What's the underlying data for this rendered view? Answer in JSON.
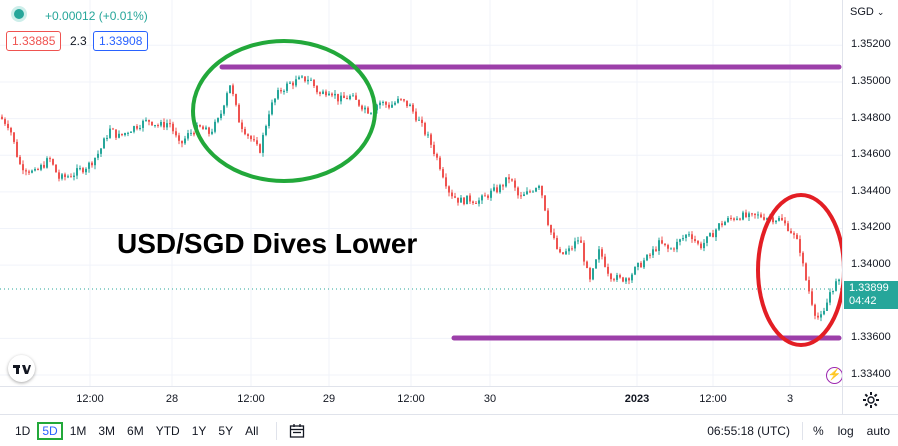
{
  "header": {
    "change_text": "+0.00012 (+0.01%)",
    "bid": "1.33885",
    "spread": "2.3",
    "ask": "1.33908"
  },
  "annotation": {
    "title": "USD/SGD Dives Lower",
    "ellipse_green_color": "#22a83a",
    "ellipse_red_color": "#e31e24",
    "line_color": "#9c3fa9"
  },
  "price_axis": {
    "currency": "SGD",
    "ticks": [
      "1.35200",
      "1.35000",
      "1.34800",
      "1.34600",
      "1.34400",
      "1.34200",
      "1.34000",
      "1.33600",
      "1.33400"
    ],
    "current_price": "1.33899",
    "countdown": "04:42"
  },
  "time_axis": {
    "ticks": [
      "12:00",
      "28",
      "12:00",
      "29",
      "12:00",
      "30",
      "2023",
      "12:00",
      "3"
    ]
  },
  "bottom_bar": {
    "intervals": [
      "1D",
      "5D",
      "1M",
      "3M",
      "6M",
      "YTD",
      "1Y",
      "5Y",
      "All"
    ],
    "active_interval": "5D",
    "clock": "06:55:18 (UTC)",
    "percent_label": "%",
    "log_label": "log",
    "auto_label": "auto"
  },
  "chart_data": {
    "type": "candlestick",
    "symbol": "USD/SGD",
    "ylim": [
      1.3334,
      1.3536
    ],
    "up_color": "#26a69a",
    "down_color": "#ef5350",
    "path_points": [
      [
        0,
        1.3481
      ],
      [
        10,
        1.3476
      ],
      [
        20,
        1.3455
      ],
      [
        35,
        1.345
      ],
      [
        50,
        1.3458
      ],
      [
        60,
        1.3447
      ],
      [
        75,
        1.345
      ],
      [
        90,
        1.3455
      ],
      [
        100,
        1.3462
      ],
      [
        110,
        1.3474
      ],
      [
        120,
        1.347
      ],
      [
        130,
        1.3474
      ],
      [
        140,
        1.3477
      ],
      [
        150,
        1.3479
      ],
      [
        160,
        1.3476
      ],
      [
        170,
        1.3478
      ],
      [
        180,
        1.3465
      ],
      [
        190,
        1.3472
      ],
      [
        200,
        1.3475
      ],
      [
        210,
        1.3472
      ],
      [
        220,
        1.348
      ],
      [
        230,
        1.35
      ],
      [
        240,
        1.3478
      ],
      [
        250,
        1.347
      ],
      [
        260,
        1.3462
      ],
      [
        270,
        1.3485
      ],
      [
        280,
        1.3495
      ],
      [
        290,
        1.3499
      ],
      [
        300,
        1.3501
      ],
      [
        310,
        1.3502
      ],
      [
        320,
        1.3493
      ],
      [
        330,
        1.3496
      ],
      [
        340,
        1.349
      ],
      [
        350,
        1.3492
      ],
      [
        360,
        1.3488
      ],
      [
        370,
        1.3484
      ],
      [
        380,
        1.3489
      ],
      [
        390,
        1.3487
      ],
      [
        400,
        1.349
      ],
      [
        410,
        1.3487
      ],
      [
        420,
        1.3478
      ],
      [
        430,
        1.3468
      ],
      [
        440,
        1.3455
      ],
      [
        450,
        1.344
      ],
      [
        460,
        1.3435
      ],
      [
        470,
        1.3436
      ],
      [
        480,
        1.3435
      ],
      [
        490,
        1.3439
      ],
      [
        500,
        1.3442
      ],
      [
        510,
        1.3448
      ],
      [
        520,
        1.3436
      ],
      [
        530,
        1.344
      ],
      [
        540,
        1.3445
      ],
      [
        550,
        1.342
      ],
      [
        560,
        1.3405
      ],
      [
        570,
        1.3408
      ],
      [
        580,
        1.3415
      ],
      [
        590,
        1.339
      ],
      [
        600,
        1.3408
      ],
      [
        610,
        1.3395
      ],
      [
        620,
        1.3392
      ],
      [
        630,
        1.3394
      ],
      [
        640,
        1.34
      ],
      [
        650,
        1.3405
      ],
      [
        660,
        1.3412
      ],
      [
        670,
        1.3408
      ],
      [
        680,
        1.3413
      ],
      [
        690,
        1.3418
      ],
      [
        700,
        1.341
      ],
      [
        710,
        1.3415
      ],
      [
        720,
        1.3422
      ],
      [
        730,
        1.3425
      ],
      [
        740,
        1.3427
      ],
      [
        750,
        1.3426
      ],
      [
        760,
        1.3427
      ],
      [
        770,
        1.3426
      ],
      [
        780,
        1.3425
      ],
      [
        790,
        1.342
      ],
      [
        800,
        1.341
      ],
      [
        805,
        1.3395
      ],
      [
        810,
        1.3385
      ],
      [
        815,
        1.3375
      ],
      [
        820,
        1.337
      ],
      [
        825,
        1.3374
      ],
      [
        830,
        1.3385
      ],
      [
        836,
        1.339
      ],
      [
        841,
        1.339
      ]
    ],
    "resistance_level": 1.3505,
    "support_level": 1.3364
  }
}
